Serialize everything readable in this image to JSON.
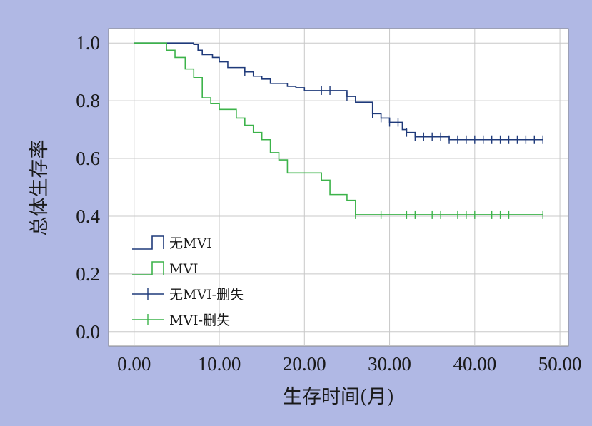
{
  "chart_data": {
    "type": "line",
    "xlabel": "生存时间(月)",
    "ylabel": "总体生存率",
    "xlim": [
      -3,
      51
    ],
    "ylim": [
      -0.05,
      1.05
    ],
    "xticks": [
      "0.00",
      "10.00",
      "20.00",
      "30.00",
      "40.00",
      "50.00"
    ],
    "xtick_values": [
      0,
      10,
      20,
      30,
      40,
      50
    ],
    "yticks": [
      "0.0",
      "0.2",
      "0.4",
      "0.6",
      "0.8",
      "1.0"
    ],
    "ytick_values": [
      0,
      0.2,
      0.4,
      0.6,
      0.8,
      1.0
    ],
    "grid": true,
    "legend_position": "bottom-left",
    "series": [
      {
        "name": "无MVI",
        "kind": "step",
        "color": "#1f3a7a",
        "points": [
          [
            0,
            1.0
          ],
          [
            3.7,
            1.0
          ],
          [
            3.7,
            1.0
          ],
          [
            7,
            0.995
          ],
          [
            7.5,
            0.975
          ],
          [
            8,
            0.96
          ],
          [
            9.2,
            0.95
          ],
          [
            10,
            0.935
          ],
          [
            11,
            0.915
          ],
          [
            13,
            0.9
          ],
          [
            14,
            0.885
          ],
          [
            15,
            0.875
          ],
          [
            16,
            0.86
          ],
          [
            18,
            0.85
          ],
          [
            19,
            0.845
          ],
          [
            20,
            0.835
          ],
          [
            25,
            0.815
          ],
          [
            26,
            0.795
          ],
          [
            28,
            0.755
          ],
          [
            29,
            0.74
          ],
          [
            30,
            0.725
          ],
          [
            31.5,
            0.7
          ],
          [
            32,
            0.69
          ],
          [
            33,
            0.675
          ],
          [
            37,
            0.665
          ],
          [
            48,
            0.665
          ]
        ],
        "censored": [
          13,
          22,
          23,
          25,
          28,
          29,
          30,
          31,
          32,
          33,
          34,
          35,
          36,
          37,
          38,
          39,
          40,
          41,
          42,
          43,
          44,
          45,
          46,
          47,
          48
        ]
      },
      {
        "name": "MVI",
        "kind": "step",
        "color": "#3cb34a",
        "points": [
          [
            0,
            1.0
          ],
          [
            3.8,
            1.0
          ],
          [
            3.8,
            0.975
          ],
          [
            4.8,
            0.95
          ],
          [
            6,
            0.91
          ],
          [
            7,
            0.88
          ],
          [
            8,
            0.81
          ],
          [
            9,
            0.79
          ],
          [
            10,
            0.77
          ],
          [
            12,
            0.74
          ],
          [
            13,
            0.715
          ],
          [
            14,
            0.69
          ],
          [
            15,
            0.665
          ],
          [
            16,
            0.62
          ],
          [
            17,
            0.595
          ],
          [
            18,
            0.55
          ],
          [
            22,
            0.525
          ],
          [
            23,
            0.475
          ],
          [
            25,
            0.455
          ],
          [
            26,
            0.405
          ],
          [
            48,
            0.405
          ]
        ],
        "censored": [
          26,
          29,
          32,
          33,
          35,
          36,
          38,
          39,
          40,
          42,
          43,
          44,
          48
        ]
      }
    ],
    "legend": [
      {
        "label": "无MVI",
        "kind": "step",
        "color": "#1f3a7a"
      },
      {
        "label": "MVI",
        "kind": "step",
        "color": "#3cb34a"
      },
      {
        "label": "无MVI-删失",
        "kind": "censor",
        "color": "#1f3a7a"
      },
      {
        "label": "MVI-删失",
        "kind": "censor",
        "color": "#3cb34a"
      }
    ]
  }
}
